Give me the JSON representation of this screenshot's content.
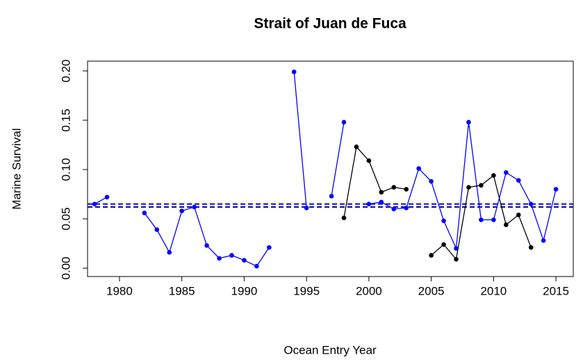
{
  "chart_data": {
    "type": "line",
    "title": "Strait of Juan de Fuca",
    "x_label": "Ocean Entry Year",
    "y_label": "Marine Survival",
    "x": [
      1978,
      1979,
      1980,
      1981,
      1982,
      1983,
      1984,
      1985,
      1986,
      1987,
      1988,
      1989,
      1990,
      1991,
      1992,
      1993,
      1994,
      1995,
      1996,
      1997,
      1998,
      1999,
      2000,
      2001,
      2002,
      2003,
      2004,
      2005,
      2006,
      2007,
      2008,
      2009,
      2010,
      2011,
      2012,
      2013,
      2014,
      2015
    ],
    "series": [
      {
        "color": "#0000ff",
        "values": [
          0.065,
          0.072,
          null,
          null,
          0.056,
          0.039,
          0.016,
          0.058,
          0.062,
          0.023,
          0.01,
          0.013,
          0.008,
          0.002,
          0.021,
          null,
          0.199,
          0.061,
          null,
          0.073,
          0.148,
          null,
          0.065,
          0.067,
          0.06,
          0.061,
          0.101,
          0.088,
          0.048,
          0.02,
          0.148,
          0.049,
          0.049,
          0.097,
          0.089,
          0.065,
          0.028,
          0.08
        ]
      },
      {
        "color": "#000000",
        "values": [
          null,
          null,
          null,
          null,
          null,
          null,
          null,
          null,
          null,
          null,
          null,
          null,
          null,
          null,
          null,
          null,
          null,
          null,
          null,
          null,
          0.051,
          0.123,
          0.109,
          0.077,
          0.082,
          0.08,
          null,
          0.013,
          0.024,
          0.009,
          0.082,
          0.084,
          0.094,
          0.044,
          0.054,
          0.021,
          null,
          null
        ]
      }
    ],
    "hlines": [
      {
        "value": 0.065,
        "color": "#0000ff"
      },
      {
        "value": 0.062,
        "color": "#000080"
      }
    ],
    "xlim": [
      1977.44,
      2016.39
    ],
    "ylim": [
      -0.0085,
      0.2099
    ],
    "xticks": [
      1980,
      1985,
      1990,
      1995,
      2000,
      2005,
      2010,
      2015
    ],
    "yticks": [
      {
        "value": 0,
        "label": "0.00"
      },
      {
        "value": 0.05,
        "label": "0.05"
      },
      {
        "value": 0.1,
        "label": "0.10"
      },
      {
        "value": 0.15,
        "label": "0.15"
      },
      {
        "value": 0.2,
        "label": "0.20"
      }
    ]
  }
}
